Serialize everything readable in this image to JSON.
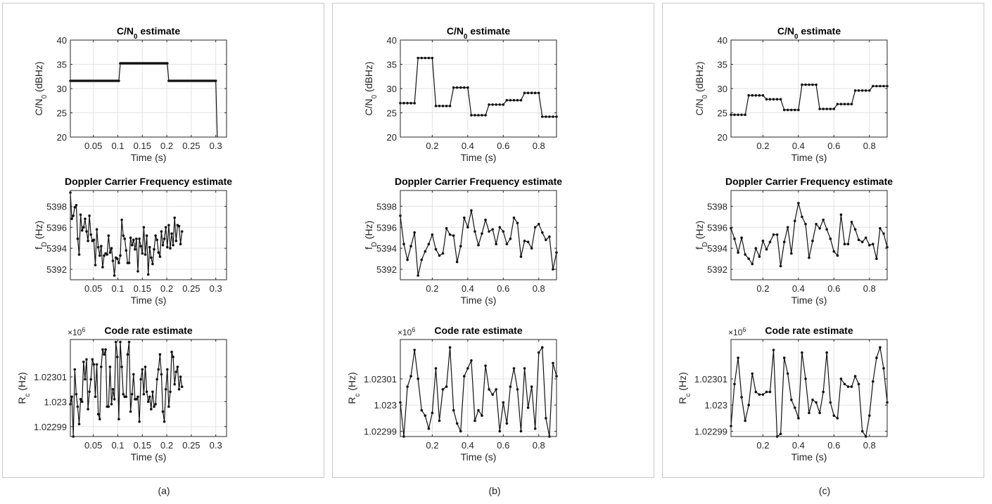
{
  "panels": [
    {
      "caption": "(a)"
    },
    {
      "caption": "(b)"
    },
    {
      "caption": "(c)"
    }
  ],
  "chart_data": [
    {
      "type": "line",
      "title": "C/N0 estimate",
      "xlabel": "Time (s)",
      "ylabel": "C/N0 (dBHz)",
      "xlim": [
        0.003,
        0.322
      ],
      "ylim": [
        20,
        40
      ],
      "xticks": [
        0.05,
        0.1,
        0.15,
        0.2,
        0.25,
        0.3
      ],
      "xtick_labels": [
        "0.05",
        "0.1",
        "0.15",
        "0.2",
        "0.25",
        "0.3"
      ],
      "yticks": [
        20,
        25,
        30,
        35,
        40
      ],
      "ytick_labels": [
        "20",
        "25",
        "30",
        "35",
        "40"
      ],
      "multiplier_label": "",
      "grid": true,
      "x": [
        0.003,
        0.307
      ],
      "levels": [
        {
          "x0": 0.003,
          "x1": 0.102,
          "y": 31.6
        },
        {
          "x0": 0.105,
          "x1": 0.201,
          "y": 35.2
        },
        {
          "x0": 0.204,
          "x1": 0.3,
          "y": 31.6
        }
      ],
      "step": 0.003,
      "end_point": {
        "x": 0.303,
        "y": 20
      }
    },
    {
      "type": "line",
      "title": "Doppler Carrier Frequency estimate",
      "xlabel": "Time (s)",
      "ylabel": "fD (Hz)",
      "xlim": [
        0.003,
        0.322
      ],
      "ylim": [
        5391,
        5399.5
      ],
      "xticks": [
        0.05,
        0.1,
        0.15,
        0.2,
        0.25,
        0.3
      ],
      "xtick_labels": [
        "0.05",
        "0.1",
        "0.15",
        "0.2",
        "0.25",
        "0.3"
      ],
      "yticks": [
        5392,
        5394,
        5396,
        5398
      ],
      "ytick_labels": [
        "5392",
        "5394",
        "5396",
        "5398"
      ],
      "multiplier_label": "",
      "grid": true,
      "x_start": 0.003,
      "x_step": 0.003,
      "values": [
        5399.3,
        5396.8,
        5397.1,
        5397.9,
        5398.1,
        5394.9,
        5393.4,
        5397.2,
        5395.7,
        5396.0,
        5396.8,
        5395.6,
        5394.7,
        5397.1,
        5395.3,
        5394.7,
        5394.8,
        5392.4,
        5395.8,
        5394.1,
        5393.3,
        5394.2,
        5392.2,
        5393.3,
        5393.5,
        5393.4,
        5395.2,
        5393.6,
        5394.0,
        5392.8,
        5391.4,
        5393.1,
        5393.0,
        5392.6,
        5393.3,
        5396.7,
        5395.2,
        5394.9,
        5393.8,
        5392.6,
        5392.6,
        5395.0,
        5394.3,
        5394.8,
        5393.9,
        5394.9,
        5391.8,
        5394.9,
        5394.2,
        5393.5,
        5396.0,
        5393.4,
        5395.2,
        5391.5,
        5394.1,
        5393.1,
        5392.5,
        5393.9,
        5395.2,
        5394.8,
        5393.6,
        5393.2,
        5395.6,
        5394.3,
        5394.9,
        5396.0,
        5394.1,
        5396.2,
        5394.0,
        5395.4,
        5394.3,
        5396.9,
        5394.7,
        5396.2,
        5396.1,
        5394.4,
        5395.6
      ]
    },
    {
      "type": "line",
      "title": "Code rate estimate",
      "xlabel": "Time (s)",
      "ylabel": "Rc (Hz)",
      "xlim": [
        0.003,
        0.322
      ],
      "ylim": [
        1.022986,
        1.023025
      ],
      "xticks": [
        0.05,
        0.1,
        0.15,
        0.2,
        0.25,
        0.3
      ],
      "xtick_labels": [
        "0.05",
        "0.1",
        "0.15",
        "0.2",
        "0.25",
        "0.3"
      ],
      "yticks": [
        1.02299,
        1.023,
        1.02301
      ],
      "ytick_labels": [
        "1.02299",
        "1.023",
        "1.02301"
      ],
      "multiplier_label": "×10^6",
      "grid": true,
      "x_start": 0.003,
      "x_step": 0.003,
      "values": [
        1.022999,
        1.023002,
        1.022986,
        1.023013,
        1.023003,
        1.022998,
        1.022991,
        1.023001,
        1.023,
        1.023016,
        1.023009,
        1.023017,
        1.022997,
        1.023004,
        1.023009,
        1.023017,
        1.023015,
        1.023002,
        1.023015,
        1.022995,
        1.022993,
        1.023014,
        1.023021,
        1.023019,
        1.023021,
        1.022998,
        1.022998,
        1.023014,
        1.022999,
        1.023005,
        1.023001,
        1.023024,
        1.023018,
        1.022993,
        1.023024,
        1.023014,
        1.023003,
        1.023002,
        1.023002,
        1.023019,
        1.023024,
        1.022996,
        1.023003,
        1.023011,
        1.023001,
        1.023001,
        1.023002,
        1.022992,
        1.023009,
        1.023013,
        1.023003,
        1.023014,
        1.023004,
        1.023,
        1.023002,
        1.022997,
        1.023004,
        1.022998,
        1.022999,
        1.023009,
        1.023013,
        1.023019,
        1.023011,
        1.022996,
        1.022992,
        1.023005,
        1.023013,
        1.022998,
        1.023004,
        1.02302,
        1.023018,
        1.023007,
        1.023012,
        1.023014,
        1.023005,
        1.02301,
        1.023006
      ]
    },
    {
      "type": "line",
      "title": "C/N0 estimate",
      "xlabel": "Time (s)",
      "ylabel": "C/N0 (dBHz)",
      "xlim": [
        0.02,
        0.9
      ],
      "ylim": [
        20,
        40
      ],
      "xticks": [
        0.2,
        0.4,
        0.6,
        0.8
      ],
      "xtick_labels": [
        "0.2",
        "0.4",
        "0.6",
        "0.8"
      ],
      "yticks": [
        20,
        25,
        30,
        35,
        40
      ],
      "ytick_labels": [
        "20",
        "25",
        "30",
        "35",
        "40"
      ],
      "multiplier_label": "",
      "grid": true,
      "x_start": 0.02,
      "x_step": 0.02,
      "values": [
        27.0,
        27.0,
        27.0,
        27.0,
        27.0,
        36.3,
        36.3,
        36.3,
        36.3,
        36.3,
        26.4,
        26.4,
        26.4,
        26.4,
        26.4,
        30.2,
        30.2,
        30.2,
        30.2,
        30.2,
        24.5,
        24.5,
        24.5,
        24.5,
        24.5,
        26.7,
        26.7,
        26.7,
        26.7,
        26.7,
        27.6,
        27.6,
        27.6,
        27.6,
        27.6,
        29.1,
        29.1,
        29.1,
        29.1,
        29.1,
        24.2,
        24.2,
        24.2,
        24.2,
        24.2
      ]
    },
    {
      "type": "line",
      "title": "Doppler Carrier Frequency estimate",
      "xlabel": "Time (s)",
      "ylabel": "fD (Hz)",
      "xlim": [
        0.02,
        0.9
      ],
      "ylim": [
        5391,
        5399.5
      ],
      "xticks": [
        0.2,
        0.4,
        0.6,
        0.8
      ],
      "xtick_labels": [
        "0.2",
        "0.4",
        "0.6",
        "0.8"
      ],
      "yticks": [
        5392,
        5394,
        5396,
        5398
      ],
      "ytick_labels": [
        "5392",
        "5394",
        "5396",
        "5398"
      ],
      "multiplier_label": "",
      "grid": true,
      "x_start": 0.02,
      "x_step": 0.02,
      "values": [
        5397.1,
        5394.4,
        5392.9,
        5394.2,
        5395.5,
        5391.4,
        5392.9,
        5393.7,
        5394.4,
        5395.3,
        5393.9,
        5393.3,
        5393.5,
        5395.9,
        5395.3,
        5395.2,
        5392.7,
        5394.2,
        5396.9,
        5396.0,
        5397.6,
        5395.6,
        5394.3,
        5395.4,
        5396.7,
        5395.6,
        5395.8,
        5394.4,
        5396.0,
        5395.6,
        5394.4,
        5394.9,
        5396.9,
        5396.4,
        5393.2,
        5394.7,
        5394.6,
        5394.0,
        5396.0,
        5396.3,
        5395.5,
        5394.8,
        5395.1,
        5392.0,
        5393.6
      ]
    },
    {
      "type": "line",
      "title": "Code rate estimate",
      "xlabel": "Time (s)",
      "ylabel": "Rc (Hz)",
      "xlim": [
        0.02,
        0.9
      ],
      "ylim": [
        1.022988,
        1.023025
      ],
      "xticks": [
        0.2,
        0.4,
        0.6,
        0.8
      ],
      "xtick_labels": [
        "0.2",
        "0.4",
        "0.6",
        "0.8"
      ],
      "yticks": [
        1.02299,
        1.023,
        1.02301
      ],
      "ytick_labels": [
        "1.02299",
        "1.023",
        "1.02301"
      ],
      "multiplier_label": "×10^6",
      "grid": true,
      "x_start": 0.02,
      "x_step": 0.02,
      "values": [
        1.023001,
        1.022988,
        1.023007,
        1.023011,
        1.023021,
        1.02301,
        1.022998,
        1.022996,
        1.022991,
        1.022997,
        1.023014,
        1.022994,
        1.023006,
        1.023007,
        1.023022,
        1.022998,
        1.022993,
        1.02299,
        1.023011,
        1.023014,
        1.023017,
        1.022994,
        1.022998,
        1.022996,
        1.023015,
        1.023006,
        1.023004,
        1.023006,
        1.02299,
        1.023001,
        1.022993,
        1.023007,
        1.023014,
        1.023006,
        1.02299,
        1.023014,
        1.022999,
        1.023007,
        1.022991,
        1.02302,
        1.023022,
        1.022995,
        1.022988,
        1.023016,
        1.023011
      ]
    },
    {
      "type": "line",
      "title": "C/N0 estimate",
      "xlabel": "Time (s)",
      "ylabel": "C/N0 (dBHz)",
      "xlim": [
        0.02,
        0.9
      ],
      "ylim": [
        20,
        40
      ],
      "xticks": [
        0.2,
        0.4,
        0.6,
        0.8
      ],
      "xtick_labels": [
        "0.2",
        "0.4",
        "0.6",
        "0.8"
      ],
      "yticks": [
        20,
        25,
        30,
        35,
        40
      ],
      "ytick_labels": [
        "20",
        "25",
        "30",
        "35",
        "40"
      ],
      "multiplier_label": "",
      "grid": true,
      "x_start": 0.02,
      "x_step": 0.02,
      "values": [
        24.6,
        24.6,
        24.6,
        24.6,
        24.6,
        28.6,
        28.6,
        28.6,
        28.6,
        28.6,
        27.8,
        27.8,
        27.8,
        27.8,
        27.8,
        25.6,
        25.6,
        25.6,
        25.6,
        25.6,
        30.8,
        30.8,
        30.8,
        30.8,
        30.8,
        25.8,
        25.8,
        25.8,
        25.8,
        25.8,
        26.8,
        26.8,
        26.8,
        26.8,
        26.8,
        29.6,
        29.6,
        29.6,
        29.6,
        29.6,
        30.5,
        30.5,
        30.5,
        30.5,
        30.5
      ]
    },
    {
      "type": "line",
      "title": "Doppler Carrier Frequency estimate",
      "xlabel": "Time (s)",
      "ylabel": "fD (Hz)",
      "xlim": [
        0.02,
        0.9
      ],
      "ylim": [
        5391,
        5399.5
      ],
      "xticks": [
        0.2,
        0.4,
        0.6,
        0.8
      ],
      "xtick_labels": [
        "0.2",
        "0.4",
        "0.6",
        "0.8"
      ],
      "yticks": [
        5392,
        5394,
        5396,
        5398
      ],
      "ytick_labels": [
        "5392",
        "5394",
        "5396",
        "5398"
      ],
      "multiplier_label": "",
      "grid": true,
      "x_start": 0.02,
      "x_step": 0.02,
      "values": [
        5395.9,
        5394.9,
        5393.6,
        5395.0,
        5393.4,
        5393.0,
        5392.5,
        5394.0,
        5393.2,
        5394.7,
        5393.9,
        5394.6,
        5395.3,
        5395.3,
        5392.3,
        5394.6,
        5396.0,
        5393.5,
        5396.6,
        5398.3,
        5397.0,
        5396.3,
        5393.1,
        5394.7,
        5396.3,
        5395.9,
        5396.7,
        5395.8,
        5394.9,
        5393.7,
        5393.3,
        5397.2,
        5394.4,
        5394.4,
        5396.5,
        5395.8,
        5394.8,
        5394.6,
        5395.0,
        5394.3,
        5394.4,
        5393.0,
        5395.9,
        5395.4,
        5394.1
      ]
    },
    {
      "type": "line",
      "title": "Code rate estimate",
      "xlabel": "Time (s)",
      "ylabel": "Rc (Hz)",
      "xlim": [
        0.02,
        0.9
      ],
      "ylim": [
        1.022988,
        1.023025
      ],
      "xticks": [
        0.2,
        0.4,
        0.6,
        0.8
      ],
      "xtick_labels": [
        "0.2",
        "0.4",
        "0.6",
        "0.8"
      ],
      "yticks": [
        1.02299,
        1.023,
        1.02301
      ],
      "ytick_labels": [
        "1.02299",
        "1.023",
        "1.02301"
      ],
      "multiplier_label": "×10^6",
      "grid": true,
      "x_start": 0.02,
      "x_step": 0.02,
      "values": [
        1.022992,
        1.023008,
        1.023018,
        1.023003,
        1.022994,
        1.023,
        1.023012,
        1.023005,
        1.023004,
        1.023004,
        1.023005,
        1.023005,
        1.023021,
        1.022988,
        1.022989,
        1.023018,
        1.023012,
        1.023002,
        1.022999,
        1.022995,
        1.02302,
        1.02301,
        1.022997,
        1.023002,
        1.023001,
        1.022997,
        1.023005,
        1.02302,
        1.023001,
        1.022996,
        1.022995,
        1.02301,
        1.023008,
        1.023007,
        1.023007,
        1.023011,
        1.023008,
        1.02299,
        1.022988,
        1.022996,
        1.023009,
        1.023018,
        1.023022,
        1.023014,
        1.023001
      ]
    }
  ]
}
